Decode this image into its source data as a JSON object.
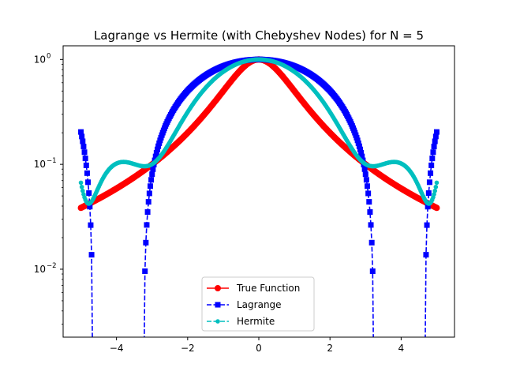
{
  "chart_data": {
    "type": "line",
    "title": "Lagrange vs Hermite (with Chebyshev Nodes) for N = 5",
    "xlabel": "",
    "ylabel": "",
    "xlim": [
      -5.5,
      5.5
    ],
    "ylim": [
      0.00225,
      1.35
    ],
    "yscale": "log",
    "x_ticks": [
      -4,
      -2,
      0,
      2,
      4
    ],
    "x_tick_labels": [
      "−4",
      "−2",
      "0",
      "2",
      "4"
    ],
    "y_ticks": [
      0.01,
      0.1,
      1
    ],
    "y_tick_labels": [
      {
        "base": "10",
        "exp": "−2"
      },
      {
        "base": "10",
        "exp": "−1"
      },
      {
        "base": "10",
        "exp": "0"
      }
    ],
    "grid": false,
    "legend_position": "lower-center",
    "x_domain": [
      -5,
      5
    ],
    "chebyshev_nodes": [
      -4.7553,
      -2.9389,
      0,
      2.9389,
      4.7553
    ],
    "series": [
      {
        "name": "True Function",
        "color": "#ff0000",
        "marker": "circle",
        "linestyle": "solid"
      },
      {
        "name": "Lagrange",
        "color": "#0000ff",
        "marker": "square",
        "linestyle": "dashed"
      },
      {
        "name": "Hermite",
        "color": "#00bfbf",
        "marker": "pentagon",
        "linestyle": "dashed"
      }
    ]
  }
}
